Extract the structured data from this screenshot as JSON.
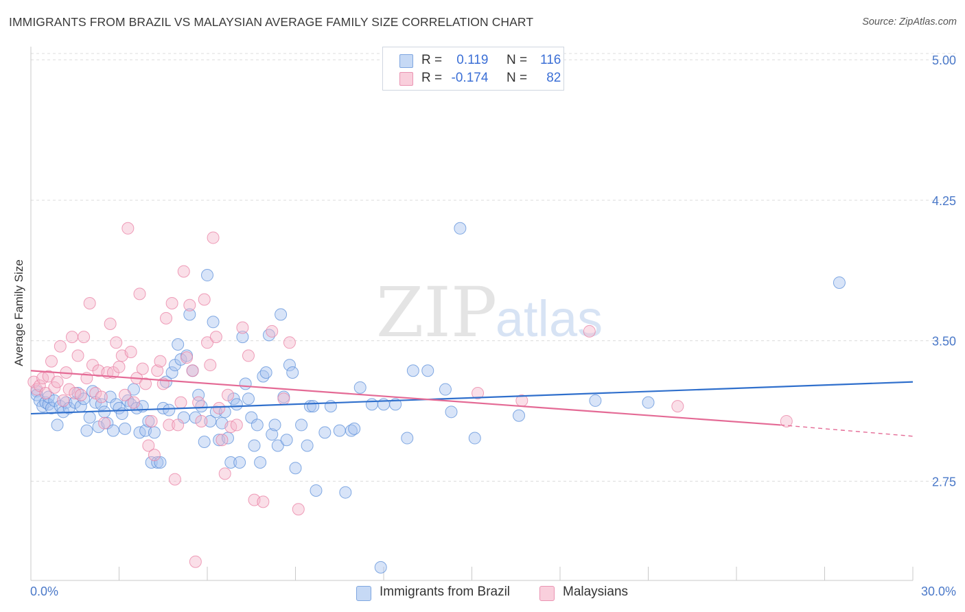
{
  "header": {
    "title": "IMMIGRANTS FROM BRAZIL VS MALAYSIAN AVERAGE FAMILY SIZE CORRELATION CHART",
    "source": "Source: ZipAtlas.com"
  },
  "legend": {
    "rows": [
      {
        "r_label": "R =",
        "r_value": "0.119",
        "n_label": "N =",
        "n_value": "116",
        "color": "#a9c4ef"
      },
      {
        "r_label": "R =",
        "r_value": "-0.174",
        "n_label": "N =",
        "n_value": "82",
        "color": "#f5b8cb"
      }
    ]
  },
  "bottom_legend": {
    "items": [
      {
        "label": "Immigrants from Brazil",
        "color": "#a9c4ef"
      },
      {
        "label": "Malaysians",
        "color": "#f5b8cb"
      }
    ]
  },
  "watermark": {
    "zip": "ZIP",
    "atlas": "atlas"
  },
  "chart_data": {
    "type": "scatter",
    "title": "IMMIGRANTS FROM BRAZIL VS MALAYSIAN AVERAGE FAMILY SIZE CORRELATION CHART",
    "xlabel": "",
    "ylabel": "Average Family Size",
    "xlim": [
      0,
      30
    ],
    "ylim": [
      2.22,
      5.07
    ],
    "x_tick_labels": [
      "0.0%",
      "30.0%"
    ],
    "y_ticks": [
      2.75,
      3.5,
      4.25,
      5.0
    ],
    "y_tick_labels": [
      "2.75",
      "3.50",
      "4.25",
      "5.00"
    ],
    "grid": "horizontal dashed",
    "legend_position": "top-center",
    "colors": {
      "brazil": "#5b8fd9",
      "brazil_fill": "#a9c4ef",
      "malaysian": "#e97fa3",
      "malaysian_fill": "#f5b8cb",
      "brazil_line": "#2f6fcc",
      "malaysian_line": "#e46a95"
    },
    "series": [
      {
        "name": "Immigrants from Brazil",
        "trend": {
          "x0": 0,
          "y0": 3.11,
          "x1": 30,
          "y1": 3.28
        },
        "points": [
          [
            0.2,
            3.23
          ],
          [
            0.2,
            3.21
          ],
          [
            0.3,
            3.18
          ],
          [
            0.4,
            3.15
          ],
          [
            0.5,
            3.17
          ],
          [
            0.6,
            3.16
          ],
          [
            0.6,
            3.2
          ],
          [
            0.7,
            3.14
          ],
          [
            0.8,
            3.18
          ],
          [
            0.9,
            3.05
          ],
          [
            1.0,
            3.15
          ],
          [
            1.1,
            3.12
          ],
          [
            1.2,
            3.17
          ],
          [
            1.3,
            3.14
          ],
          [
            1.5,
            3.17
          ],
          [
            1.6,
            3.22
          ],
          [
            1.7,
            3.15
          ],
          [
            1.8,
            3.19
          ],
          [
            1.9,
            3.02
          ],
          [
            2.0,
            3.09
          ],
          [
            2.1,
            3.23
          ],
          [
            2.2,
            3.17
          ],
          [
            2.3,
            3.04
          ],
          [
            2.4,
            3.16
          ],
          [
            2.5,
            3.12
          ],
          [
            2.6,
            3.06
          ],
          [
            2.7,
            3.2
          ],
          [
            2.8,
            3.02
          ],
          [
            2.9,
            3.16
          ],
          [
            3.0,
            3.14
          ],
          [
            3.1,
            3.11
          ],
          [
            3.2,
            3.03
          ],
          [
            3.3,
            3.18
          ],
          [
            3.4,
            3.16
          ],
          [
            3.5,
            3.24
          ],
          [
            3.6,
            3.14
          ],
          [
            3.7,
            3.01
          ],
          [
            3.8,
            3.15
          ],
          [
            3.9,
            3.02
          ],
          [
            4.0,
            3.07
          ],
          [
            4.1,
            2.85
          ],
          [
            4.2,
            3.01
          ],
          [
            4.3,
            2.85
          ],
          [
            4.4,
            2.85
          ],
          [
            4.5,
            3.14
          ],
          [
            4.6,
            3.28
          ],
          [
            4.7,
            3.13
          ],
          [
            4.8,
            3.33
          ],
          [
            4.9,
            3.37
          ],
          [
            5.0,
            3.48
          ],
          [
            5.1,
            3.4
          ],
          [
            5.2,
            3.09
          ],
          [
            5.3,
            3.42
          ],
          [
            5.4,
            3.64
          ],
          [
            5.5,
            3.34
          ],
          [
            5.6,
            3.09
          ],
          [
            5.7,
            3.21
          ],
          [
            5.8,
            3.15
          ],
          [
            5.9,
            2.96
          ],
          [
            6.0,
            3.85
          ],
          [
            6.1,
            3.07
          ],
          [
            6.2,
            3.6
          ],
          [
            6.3,
            3.12
          ],
          [
            6.4,
            2.97
          ],
          [
            6.5,
            3.06
          ],
          [
            6.6,
            3.12
          ],
          [
            6.7,
            2.98
          ],
          [
            6.8,
            2.85
          ],
          [
            6.9,
            3.19
          ],
          [
            7.0,
            3.16
          ],
          [
            7.1,
            2.85
          ],
          [
            7.2,
            3.52
          ],
          [
            7.3,
            3.27
          ],
          [
            7.4,
            3.19
          ],
          [
            7.5,
            3.09
          ],
          [
            7.6,
            2.94
          ],
          [
            7.7,
            3.05
          ],
          [
            7.8,
            2.85
          ],
          [
            7.9,
            3.31
          ],
          [
            8.0,
            3.33
          ],
          [
            8.1,
            3.53
          ],
          [
            8.2,
            3.0
          ],
          [
            8.3,
            3.05
          ],
          [
            8.4,
            2.94
          ],
          [
            8.5,
            3.64
          ],
          [
            8.6,
            3.2
          ],
          [
            8.7,
            2.97
          ],
          [
            8.8,
            3.37
          ],
          [
            8.9,
            3.33
          ],
          [
            9.0,
            2.82
          ],
          [
            9.2,
            3.05
          ],
          [
            9.4,
            2.94
          ],
          [
            9.5,
            3.15
          ],
          [
            9.6,
            3.15
          ],
          [
            9.7,
            2.7
          ],
          [
            10.0,
            3.01
          ],
          [
            10.2,
            3.15
          ],
          [
            10.5,
            3.02
          ],
          [
            10.7,
            2.69
          ],
          [
            10.9,
            3.02
          ],
          [
            11.0,
            3.03
          ],
          [
            11.2,
            3.25
          ],
          [
            11.6,
            3.16
          ],
          [
            12.0,
            3.16
          ],
          [
            12.4,
            3.16
          ],
          [
            12.8,
            2.98
          ],
          [
            13.0,
            3.34
          ],
          [
            13.5,
            3.34
          ],
          [
            14.1,
            3.24
          ],
          [
            14.3,
            3.12
          ],
          [
            14.6,
            4.1
          ],
          [
            15.1,
            2.98
          ],
          [
            16.6,
            3.1
          ],
          [
            19.2,
            3.18
          ],
          [
            21.0,
            3.17
          ],
          [
            27.5,
            3.81
          ]
        ],
        "outliers": [
          [
            11.9,
            2.29
          ]
        ]
      },
      {
        "name": "Malaysians",
        "trend": {
          "x0": 0,
          "y0": 3.34,
          "x1": 25.5,
          "y1": 3.05,
          "dash_to_x": 30,
          "dash_to_y": 2.99
        },
        "points": [
          [
            0.1,
            3.28
          ],
          [
            0.2,
            3.24
          ],
          [
            0.3,
            3.26
          ],
          [
            0.4,
            3.3
          ],
          [
            0.5,
            3.22
          ],
          [
            0.6,
            3.31
          ],
          [
            0.7,
            3.39
          ],
          [
            0.8,
            3.25
          ],
          [
            0.9,
            3.28
          ],
          [
            1.0,
            3.47
          ],
          [
            1.1,
            3.18
          ],
          [
            1.2,
            3.33
          ],
          [
            1.3,
            3.24
          ],
          [
            1.4,
            3.52
          ],
          [
            1.5,
            3.22
          ],
          [
            1.6,
            3.42
          ],
          [
            1.7,
            3.21
          ],
          [
            1.8,
            3.52
          ],
          [
            1.9,
            3.3
          ],
          [
            2.0,
            3.7
          ],
          [
            2.1,
            3.37
          ],
          [
            2.2,
            3.22
          ],
          [
            2.3,
            3.34
          ],
          [
            2.4,
            3.2
          ],
          [
            2.5,
            3.06
          ],
          [
            2.6,
            3.33
          ],
          [
            2.7,
            3.59
          ],
          [
            2.8,
            3.33
          ],
          [
            2.9,
            3.49
          ],
          [
            3.0,
            3.36
          ],
          [
            3.1,
            3.42
          ],
          [
            3.2,
            3.21
          ],
          [
            3.3,
            4.1
          ],
          [
            3.4,
            3.44
          ],
          [
            3.5,
            3.17
          ],
          [
            3.6,
            3.3
          ],
          [
            3.7,
            3.75
          ],
          [
            3.8,
            3.35
          ],
          [
            3.9,
            3.27
          ],
          [
            4.0,
            2.94
          ],
          [
            4.1,
            3.07
          ],
          [
            4.2,
            2.89
          ],
          [
            4.3,
            3.34
          ],
          [
            4.4,
            3.39
          ],
          [
            4.5,
            3.27
          ],
          [
            4.6,
            3.62
          ],
          [
            4.7,
            3.05
          ],
          [
            4.8,
            3.7
          ],
          [
            4.9,
            2.76
          ],
          [
            5.0,
            3.05
          ],
          [
            5.1,
            3.17
          ],
          [
            5.2,
            3.87
          ],
          [
            5.3,
            3.41
          ],
          [
            5.4,
            3.69
          ],
          [
            5.5,
            3.34
          ],
          [
            5.6,
            2.32
          ],
          [
            5.7,
            3.17
          ],
          [
            5.8,
            3.07
          ],
          [
            5.9,
            3.72
          ],
          [
            6.0,
            3.49
          ],
          [
            6.1,
            3.37
          ],
          [
            6.2,
            4.05
          ],
          [
            6.3,
            3.52
          ],
          [
            6.4,
            3.14
          ],
          [
            6.5,
            2.97
          ],
          [
            6.6,
            2.79
          ],
          [
            6.7,
            3.21
          ],
          [
            6.8,
            3.04
          ],
          [
            7.0,
            3.05
          ],
          [
            7.2,
            3.57
          ],
          [
            7.4,
            3.42
          ],
          [
            7.6,
            2.65
          ],
          [
            7.9,
            2.64
          ],
          [
            8.2,
            3.55
          ],
          [
            8.6,
            3.19
          ],
          [
            8.8,
            3.49
          ],
          [
            9.1,
            2.6
          ],
          [
            15.2,
            3.22
          ],
          [
            16.7,
            3.18
          ],
          [
            19.0,
            3.55
          ],
          [
            22.0,
            3.15
          ],
          [
            25.7,
            3.07
          ]
        ]
      }
    ]
  }
}
